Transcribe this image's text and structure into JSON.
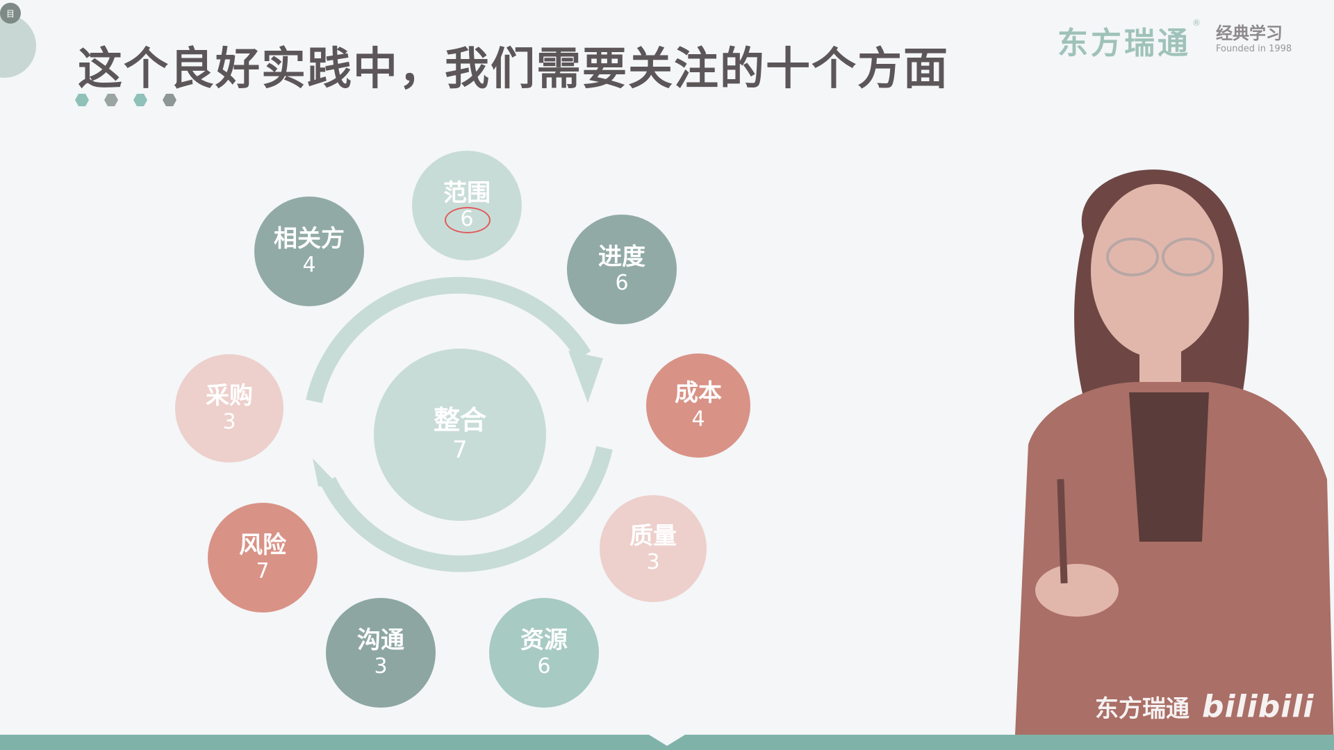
{
  "header": {
    "title": "这个良好实践中，我们需要关注的十个方面",
    "corner_badge": "目"
  },
  "logo": {
    "main": "东方瑞通",
    "registered": "®",
    "sub": "经典学习",
    "founded": "Founded in 1998"
  },
  "hex_colors": [
    "#8fc1b8",
    "#9aa5a2",
    "#8fc1b8",
    "#8d9794"
  ],
  "center": {
    "label": "整合",
    "count": "7",
    "color": "#c8dcd7"
  },
  "areas": [
    {
      "label": "范围",
      "count": "6",
      "color": "#c8dcd7",
      "highlighted": true
    },
    {
      "label": "进度",
      "count": "6",
      "color": "#91aaa5"
    },
    {
      "label": "成本",
      "count": "4",
      "color": "#d99286"
    },
    {
      "label": "质量",
      "count": "3",
      "color": "#edcfcb"
    },
    {
      "label": "资源",
      "count": "6",
      "color": "#a7cac3"
    },
    {
      "label": "沟通",
      "count": "3",
      "color": "#8da6a1"
    },
    {
      "label": "风险",
      "count": "7",
      "color": "#d99286"
    },
    {
      "label": "采购",
      "count": "3",
      "color": "#edcfcb"
    },
    {
      "label": "相关方",
      "count": "4",
      "color": "#91aaa5"
    }
  ],
  "arrow_color": "#c8dcd7",
  "annotation_color": "#e05a5a",
  "watermark": {
    "text": "东方瑞通",
    "brand": "bilibili"
  },
  "presenter": {
    "blazer": "#aa6f66",
    "skin": "#e2b7ab",
    "hair": "#6e4744"
  }
}
